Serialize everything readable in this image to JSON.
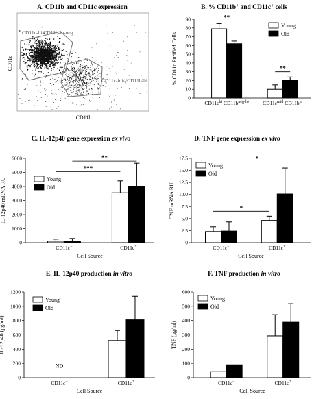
{
  "chart_data": [
    {
      "id": "A",
      "type": "scatter",
      "title": "A. CD11b and CD11c expression",
      "xlabel": "CD11b",
      "ylabel": "CD11c",
      "gates": [
        {
          "label": "CD11c-hi/CD11b-lo-neg"
        },
        {
          "label": "CD11c-mid/CD11b-hi"
        }
      ]
    },
    {
      "id": "B",
      "type": "bar",
      "title_main": "B. % CD11b",
      "title_sup1": "+",
      "title_mid": " and CD11c",
      "title_sup2": "+",
      "title_end": " cells",
      "ylabel": "% CD11c Purified Cells",
      "ylim": [
        0,
        90
      ],
      "yticks": [
        0,
        10,
        20,
        30,
        40,
        50,
        60,
        70,
        80,
        90
      ],
      "categories": [
        {
          "main": "CD11c",
          "sup": "hi",
          "main2": " CD11b",
          "sup2": "neg-lo"
        },
        {
          "main": "CD11c",
          "sup": "mid",
          "main2": " CD11b",
          "sup2": "hi"
        }
      ],
      "series": [
        {
          "name": "Young",
          "values": [
            79,
            10
          ],
          "errors": [
            6,
            5
          ]
        },
        {
          "name": "Old",
          "values": [
            62,
            20
          ],
          "errors": [
            3,
            4
          ]
        }
      ],
      "significance": [
        {
          "label": "**",
          "group": 0
        },
        {
          "label": "**",
          "group": 1
        }
      ],
      "legend": "top-right"
    },
    {
      "id": "C",
      "type": "bar",
      "title_main": "C. IL-12p40 gene expression ",
      "title_ital": "ex vivo",
      "ylabel": "IL-12p40 mRNA RU",
      "xlabel": "Cell Source",
      "ylim": [
        0,
        6000
      ],
      "yticks": [
        0,
        1000,
        2000,
        3000,
        4000,
        5000,
        6000
      ],
      "categories": [
        {
          "main": "CD11c",
          "sup": "−"
        },
        {
          "main": "CD11c",
          "sup": "+"
        }
      ],
      "series": [
        {
          "name": "Young",
          "values": [
            100,
            3550
          ],
          "errors": [
            150,
            850
          ]
        },
        {
          "name": "Old",
          "values": [
            120,
            4000
          ],
          "errors": [
            180,
            1650
          ]
        }
      ],
      "significance": [
        {
          "label": "***",
          "from": 0,
          "to": 2
        },
        {
          "label": "**",
          "from": 1,
          "to": 3
        }
      ],
      "legend": "middle-left"
    },
    {
      "id": "D",
      "type": "bar",
      "title_main": "D. TNF gene expression ",
      "title_ital": "ex vivo",
      "ylabel": "TNF mRNA RU",
      "xlabel": "Cell Source",
      "ylim": [
        0,
        17.5
      ],
      "yticks": [
        "0",
        "2.5",
        "5.0",
        "7.5",
        "10.0",
        "12.5",
        "15.0",
        "17.5"
      ],
      "categories": [
        {
          "main": "CD11c",
          "sup": "−"
        },
        {
          "main": "CD11c",
          "sup": "+"
        }
      ],
      "series": [
        {
          "name": "Young",
          "values": [
            2.3,
            4.6
          ],
          "errors": [
            1.0,
            0.9
          ]
        },
        {
          "name": "Old",
          "values": [
            2.4,
            10.1
          ],
          "errors": [
            1.9,
            5.4
          ]
        }
      ],
      "significance": [
        {
          "label": "*",
          "from": 0,
          "to": 2
        },
        {
          "label": "*",
          "from": 1,
          "to": 3
        }
      ],
      "legend": "top-left"
    },
    {
      "id": "E",
      "type": "bar",
      "title_main": "E. IL-12p40 production ",
      "title_ital": "in vitro",
      "ylabel": "IL-12p40  (pg/ml)",
      "xlabel": "Cell Source",
      "ylim": [
        0,
        1200
      ],
      "yticks": [
        0,
        200,
        400,
        600,
        800,
        1000,
        1200
      ],
      "categories": [
        {
          "main": "CD11c",
          "sup": "−"
        },
        {
          "main": "CD11c",
          "sup": "+"
        }
      ],
      "series": [
        {
          "name": "Young",
          "values": [
            null,
            520
          ],
          "errors": [
            0,
            140
          ]
        },
        {
          "name": "Old",
          "values": [
            null,
            810
          ],
          "errors": [
            0,
            330
          ]
        }
      ],
      "annotation": "ND",
      "legend": "top-left"
    },
    {
      "id": "F",
      "type": "bar",
      "title_main": "F. TNF production ",
      "title_ital": "in vitro",
      "ylabel": "TNF   (pg/ml)",
      "xlabel": "Cell Source",
      "ylim": [
        0,
        600
      ],
      "yticks": [
        0,
        100,
        200,
        300,
        400,
        500,
        600
      ],
      "categories": [
        {
          "main": "CD11c",
          "sup": "−"
        },
        {
          "main": "CD11c",
          "sup": "+"
        }
      ],
      "series": [
        {
          "name": "Young",
          "values": [
            42,
            293
          ],
          "errors": [
            0,
            148
          ]
        },
        {
          "name": "Old",
          "values": [
            90,
            393
          ],
          "errors": [
            0,
            125
          ]
        }
      ],
      "legend": "top-left"
    }
  ]
}
